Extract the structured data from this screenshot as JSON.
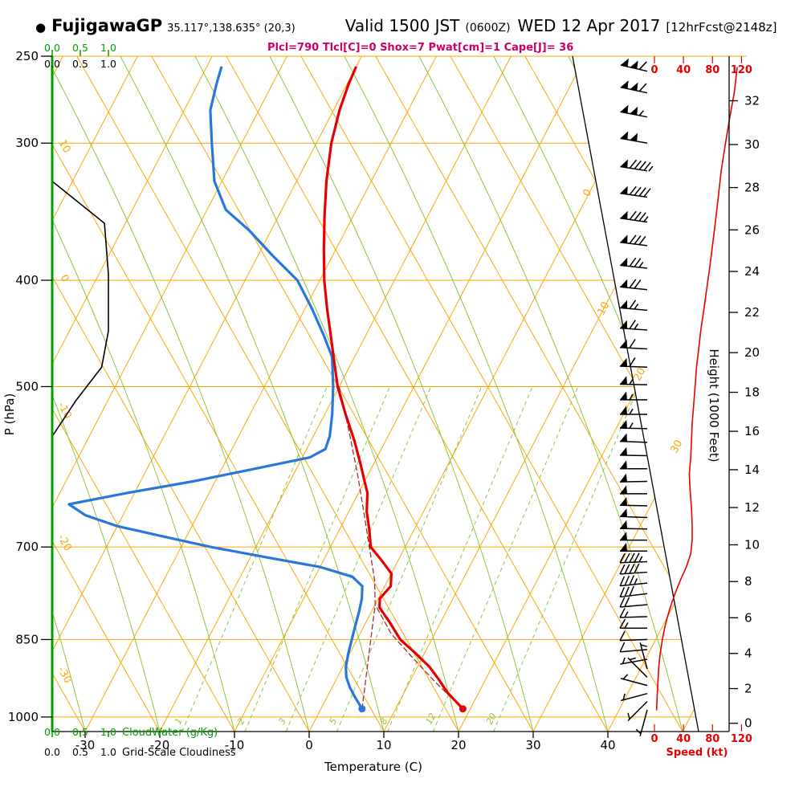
{
  "header": {
    "bullet": "●",
    "station": "FujigawaGP",
    "coords": "35.117°,138.635° (20,3)",
    "valid_main": "Valid 1500 JST",
    "valid_z": "(0600Z)",
    "valid_date": "WED 12 Apr 2017",
    "forecast_tag": "[12hrFcst@2148z]",
    "params": "Plcl=790 Tlcl[C]=0 Shox=7 Pwat[cm]=1 Cape[J]= 36"
  },
  "colors": {
    "grid_orange": "#FFA500",
    "grid_green": "#8DC63F",
    "axis_green": "#00A000",
    "temp_red": "#E60000",
    "dew_blue": "#2878DC",
    "parcel_maroon": "#A03030",
    "magenta": "#CC0066",
    "black": "#000000"
  },
  "chart_data": {
    "type": "line",
    "subtype": "skew-t log-p sounding (emagram)",
    "axes": {
      "pressure": {
        "label": "P (hPa)",
        "ticks": [
          250,
          300,
          400,
          500,
          700,
          850,
          1000
        ]
      },
      "temperature": {
        "label": "Temperature (C)",
        "ticks": [
          -30,
          -20,
          -10,
          0,
          10,
          20,
          30,
          40
        ]
      },
      "height": {
        "label": "Height (1000 Feet)",
        "ticks": [
          0,
          2,
          4,
          6,
          8,
          10,
          12,
          14,
          16,
          18,
          20,
          22,
          24,
          26,
          28,
          30,
          32
        ]
      },
      "speed": {
        "label": "Speed (kt)",
        "ticks": [
          0,
          40,
          80,
          120
        ]
      },
      "cloudwater": {
        "label": "CloudWater (g/Kg)",
        "ticks": [
          "0.0",
          "0.5",
          "1.0"
        ]
      },
      "cloudiness": {
        "label": "Grid-Scale Cloudiness",
        "ticks": [
          "0.0",
          "0.5",
          "1.0"
        ]
      }
    },
    "grid": {
      "isotherm_labels": [
        0,
        10,
        20,
        30
      ],
      "dry_adiabat_labels": [
        10,
        0,
        -10,
        -20,
        -30
      ],
      "mixing_ratio_lines": [
        {
          "w": 1,
          "td": -17.0
        },
        {
          "w": 2,
          "td": -8.6
        },
        {
          "w": 3,
          "td": -3.1
        },
        {
          "w": 5,
          "td": 3.7
        },
        {
          "w": 8,
          "td": 10.5
        },
        {
          "w": 12,
          "td": 16.6
        },
        {
          "w": 20,
          "td": 24.7
        }
      ]
    },
    "temperature_profile": [
      [
        983,
        19
      ],
      [
        950,
        15.8
      ],
      [
        925,
        13.8
      ],
      [
        900,
        11.6
      ],
      [
        875,
        8.8
      ],
      [
        850,
        5.8
      ],
      [
        820,
        3.2
      ],
      [
        795,
        0.8
      ],
      [
        780,
        0.2
      ],
      [
        760,
        0.8
      ],
      [
        740,
        0.0
      ],
      [
        720,
        -2.2
      ],
      [
        700,
        -4.6
      ],
      [
        675,
        -6.0
      ],
      [
        650,
        -7.6
      ],
      [
        625,
        -8.8
      ],
      [
        610,
        -10.0
      ],
      [
        590,
        -11.6
      ],
      [
        560,
        -14.2
      ],
      [
        530,
        -17.2
      ],
      [
        500,
        -20.2
      ],
      [
        470,
        -22.8
      ],
      [
        450,
        -24.6
      ],
      [
        425,
        -27.0
      ],
      [
        400,
        -29.4
      ],
      [
        375,
        -31.6
      ],
      [
        350,
        -33.8
      ],
      [
        325,
        -36.0
      ],
      [
        300,
        -38.0
      ],
      [
        280,
        -39.2
      ],
      [
        265,
        -39.8
      ],
      [
        256,
        -40.0
      ]
    ],
    "dewpoint_profile": [
      [
        983,
        5.5
      ],
      [
        960,
        3.8
      ],
      [
        940,
        2.4
      ],
      [
        920,
        1.2
      ],
      [
        900,
        0.4
      ],
      [
        875,
        -0.2
      ],
      [
        850,
        -0.7
      ],
      [
        825,
        -1.2
      ],
      [
        800,
        -1.7
      ],
      [
        780,
        -2.2
      ],
      [
        760,
        -3.0
      ],
      [
        745,
        -5.0
      ],
      [
        730,
        -10
      ],
      [
        715,
        -18
      ],
      [
        700,
        -26
      ],
      [
        685,
        -33
      ],
      [
        670,
        -40
      ],
      [
        655,
        -45
      ],
      [
        640,
        -48
      ],
      [
        625,
        -41
      ],
      [
        610,
        -33
      ],
      [
        595,
        -26
      ],
      [
        580,
        -19
      ],
      [
        570,
        -17.5
      ],
      [
        555,
        -17.8
      ],
      [
        530,
        -19
      ],
      [
        500,
        -20.8
      ],
      [
        470,
        -23
      ],
      [
        450,
        -25.5
      ],
      [
        425,
        -29
      ],
      [
        400,
        -33
      ],
      [
        380,
        -38
      ],
      [
        360,
        -43
      ],
      [
        345,
        -47.5
      ],
      [
        325,
        -51
      ],
      [
        300,
        -54
      ],
      [
        280,
        -56.5
      ],
      [
        265,
        -57.5
      ],
      [
        256,
        -58
      ]
    ],
    "parcel_profile": [
      [
        983,
        19
      ],
      [
        930,
        13.5
      ],
      [
        880,
        8.4
      ],
      [
        840,
        4.2
      ],
      [
        790,
        0
      ],
      [
        750,
        -1.8
      ],
      [
        700,
        -4.8
      ],
      [
        650,
        -8
      ],
      [
        600,
        -11.5
      ],
      [
        550,
        -15.5
      ],
      [
        500,
        -20
      ]
    ],
    "parcel_mixing_segment": [
      [
        983,
        5.5
      ],
      [
        790,
        0
      ]
    ],
    "surface_temp_dot": {
      "p": 983,
      "t": 19
    },
    "surface_dewpoint_dot": {
      "p": 983,
      "t": 5.5
    },
    "cloudiness_profile": [
      [
        325,
        0
      ],
      [
        355,
        0.93
      ],
      [
        395,
        1.0
      ],
      [
        445,
        1.0
      ],
      [
        480,
        0.88
      ],
      [
        515,
        0.42
      ],
      [
        555,
        0
      ]
    ],
    "cloudwater_profile": [
      [
        250,
        0
      ],
      [
        1030,
        0
      ]
    ],
    "wind_barbs": [
      [
        985,
        195,
        3
      ],
      [
        968,
        225,
        4
      ],
      [
        952,
        255,
        4
      ],
      [
        936,
        285,
        5
      ],
      [
        920,
        315,
        5
      ],
      [
        904,
        345,
        4
      ],
      [
        886,
        260,
        7
      ],
      [
        868,
        265,
        8
      ],
      [
        850,
        268,
        10
      ],
      [
        830,
        270,
        13
      ],
      [
        810,
        268,
        17
      ],
      [
        790,
        265,
        22
      ],
      [
        772,
        263,
        28
      ],
      [
        755,
        264,
        34
      ],
      [
        738,
        266,
        40
      ],
      [
        722,
        268,
        45
      ],
      [
        706,
        270,
        50
      ],
      [
        690,
        270,
        52
      ],
      [
        674,
        271,
        51
      ],
      [
        658,
        272,
        50
      ],
      [
        642,
        271,
        48
      ],
      [
        626,
        270,
        48
      ],
      [
        610,
        269,
        49
      ],
      [
        594,
        270,
        50
      ],
      [
        578,
        271,
        51
      ],
      [
        562,
        272,
        52
      ],
      [
        546,
        271,
        53
      ],
      [
        530,
        270,
        54
      ],
      [
        514,
        270,
        55
      ],
      [
        498,
        271,
        56
      ],
      [
        480,
        272,
        58
      ],
      [
        462,
        273,
        60
      ],
      [
        444,
        274,
        63
      ],
      [
        426,
        275,
        67
      ],
      [
        408,
        276,
        71
      ],
      [
        390,
        276,
        76
      ],
      [
        372,
        277,
        81
      ],
      [
        354,
        278,
        85
      ],
      [
        336,
        278,
        90
      ],
      [
        318,
        279,
        95
      ],
      [
        300,
        280,
        98
      ],
      [
        284,
        281,
        103
      ],
      [
        270,
        282,
        108
      ],
      [
        258,
        283,
        112
      ]
    ],
    "wind_speed_profile": [
      [
        256,
        114
      ],
      [
        270,
        110
      ],
      [
        284,
        104
      ],
      [
        300,
        98
      ],
      [
        318,
        92
      ],
      [
        336,
        88
      ],
      [
        354,
        84
      ],
      [
        372,
        80
      ],
      [
        390,
        76
      ],
      [
        408,
        72
      ],
      [
        426,
        68
      ],
      [
        444,
        64
      ],
      [
        462,
        61
      ],
      [
        480,
        58
      ],
      [
        500,
        56
      ],
      [
        520,
        54
      ],
      [
        540,
        52
      ],
      [
        560,
        51
      ],
      [
        580,
        50
      ],
      [
        600,
        48
      ],
      [
        620,
        49
      ],
      [
        645,
        51
      ],
      [
        668,
        52
      ],
      [
        690,
        52
      ],
      [
        710,
        50
      ],
      [
        730,
        44
      ],
      [
        750,
        36
      ],
      [
        770,
        29
      ],
      [
        790,
        23
      ],
      [
        810,
        18
      ],
      [
        830,
        14
      ],
      [
        850,
        11
      ],
      [
        875,
        8
      ],
      [
        900,
        6
      ],
      [
        925,
        5
      ],
      [
        950,
        4
      ],
      [
        985,
        3
      ]
    ]
  }
}
